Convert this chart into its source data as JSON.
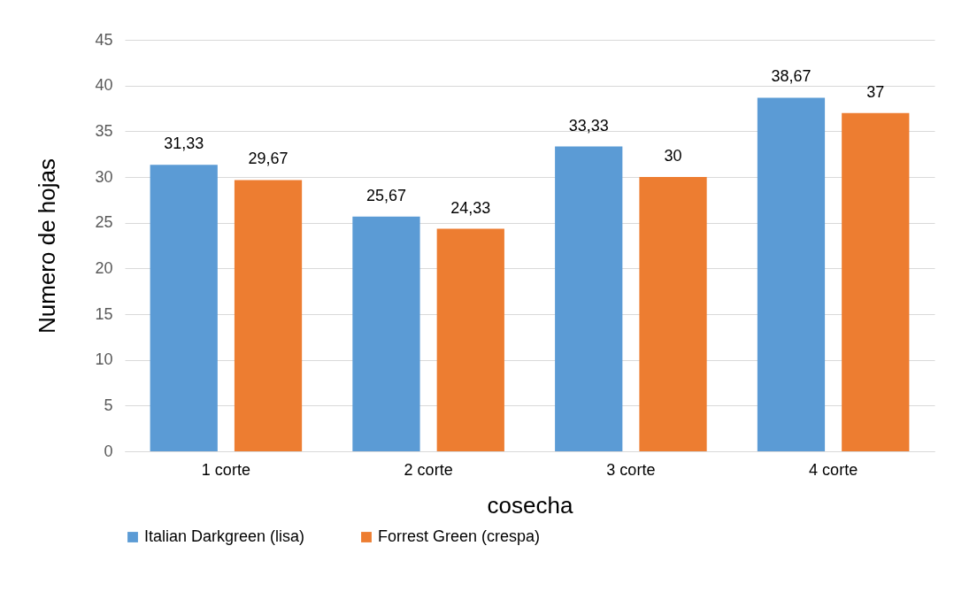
{
  "chart_data": {
    "type": "bar",
    "xlabel": "cosecha",
    "ylabel": "Numero de hojas",
    "categories": [
      "1 corte",
      "2 corte",
      "3 corte",
      "4 corte"
    ],
    "series": [
      {
        "name": "Italian Darkgreen (lisa)",
        "color": "#5b9bd5",
        "values": [
          31.33,
          25.67,
          33.33,
          38.67
        ],
        "value_labels": [
          "31,33",
          "25,67",
          "33,33",
          "38,67"
        ]
      },
      {
        "name": "Forrest Green (crespa)",
        "color": "#ed7d31",
        "values": [
          29.67,
          24.33,
          30,
          37
        ],
        "value_labels": [
          "29,67",
          "24,33",
          "30",
          "37"
        ]
      }
    ],
    "ylim": [
      0,
      45
    ],
    "yticks": [
      0,
      5,
      10,
      15,
      20,
      25,
      30,
      35,
      40,
      45
    ],
    "grid": "y",
    "legend": "bottom"
  }
}
